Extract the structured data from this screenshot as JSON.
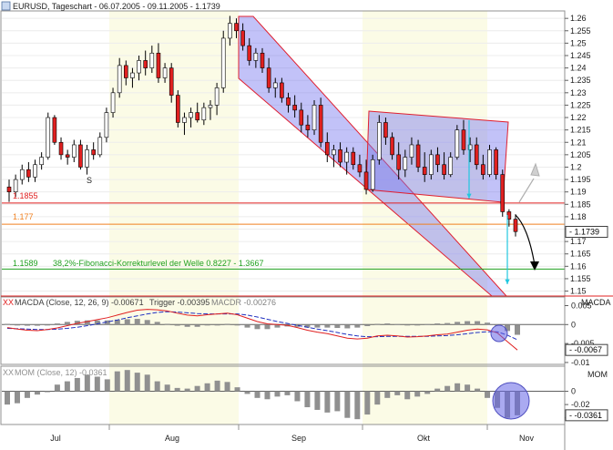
{
  "header": {
    "title": "EURUSD, Tageschart - 06.07.2005 - 09.11.2005 - 1.1739",
    "icon": "chart-window-icon"
  },
  "price_panel": {
    "y_ticks": [
      "1.26",
      "1.255",
      "1.25",
      "1.245",
      "1.24",
      "1.235",
      "1.23",
      "1.225",
      "1.22",
      "1.215",
      "1.21",
      "1.205",
      "1.2",
      "1.195",
      "1.19",
      "1.185",
      "1.18",
      "1.175",
      "1.17",
      "1.165",
      "1.16",
      "1.155",
      "1.15"
    ],
    "last_price": "1.1739",
    "levels": [
      {
        "label": "1.1855",
        "value": 1.1855,
        "color": "#e02020"
      },
      {
        "label": "1.177",
        "value": 1.177,
        "color": "#f08020"
      },
      {
        "label": "1.1589",
        "value": 1.1589,
        "color": "#20a020"
      }
    ],
    "fib_label": "38,2%-Fibonacci-Korrekturlevel der Welle 0.8227 - 1.3667",
    "s_label": "S"
  },
  "macd_panel": {
    "legend": {
      "main": "MACDA (Close, 12, 26, 9) -0.00671",
      "trigger": "Trigger -0.00395",
      "macdr": "MACDR -0.00276"
    },
    "title": "MACDA",
    "y_ticks": [
      "0.005",
      "0",
      "-0.005",
      "-0.01"
    ],
    "last_value": "-0.0067"
  },
  "mom_panel": {
    "legend": "MOM (Close, 12) -0.0361",
    "title": "MOM",
    "y_ticks": [
      "0",
      "-0.02",
      "-0.04"
    ],
    "last_value": "-0.0361"
  },
  "x_axis": {
    "labels": [
      "Jul",
      "Aug",
      "Sep",
      "Okt",
      "Nov"
    ]
  },
  "chart_data": {
    "type": "candlestick",
    "title": "EURUSD, Tageschart - 06.07.2005 - 09.11.2005 - 1.1739",
    "ylim": [
      1.148,
      1.263
    ],
    "x_labels": [
      "Jul",
      "Aug",
      "Sep",
      "Okt",
      "Nov"
    ],
    "candles": [
      {
        "o": 1.192,
        "h": 1.195,
        "l": 1.186,
        "c": 1.19
      },
      {
        "o": 1.19,
        "h": 1.197,
        "l": 1.188,
        "c": 1.195
      },
      {
        "o": 1.195,
        "h": 1.201,
        "l": 1.193,
        "c": 1.199
      },
      {
        "o": 1.199,
        "h": 1.202,
        "l": 1.194,
        "c": 1.196
      },
      {
        "o": 1.196,
        "h": 1.203,
        "l": 1.194,
        "c": 1.201
      },
      {
        "o": 1.201,
        "h": 1.206,
        "l": 1.199,
        "c": 1.204
      },
      {
        "o": 1.204,
        "h": 1.222,
        "l": 1.203,
        "c": 1.22
      },
      {
        "o": 1.22,
        "h": 1.221,
        "l": 1.209,
        "c": 1.21
      },
      {
        "o": 1.21,
        "h": 1.212,
        "l": 1.203,
        "c": 1.205
      },
      {
        "o": 1.205,
        "h": 1.207,
        "l": 1.201,
        "c": 1.204
      },
      {
        "o": 1.204,
        "h": 1.211,
        "l": 1.202,
        "c": 1.209
      },
      {
        "o": 1.209,
        "h": 1.211,
        "l": 1.199,
        "c": 1.2
      },
      {
        "o": 1.2,
        "h": 1.209,
        "l": 1.197,
        "c": 1.207
      },
      {
        "o": 1.207,
        "h": 1.21,
        "l": 1.203,
        "c": 1.205
      },
      {
        "o": 1.205,
        "h": 1.214,
        "l": 1.204,
        "c": 1.212
      },
      {
        "o": 1.212,
        "h": 1.224,
        "l": 1.21,
        "c": 1.222
      },
      {
        "o": 1.222,
        "h": 1.232,
        "l": 1.22,
        "c": 1.23
      },
      {
        "o": 1.23,
        "h": 1.244,
        "l": 1.228,
        "c": 1.241
      },
      {
        "o": 1.241,
        "h": 1.243,
        "l": 1.233,
        "c": 1.236
      },
      {
        "o": 1.236,
        "h": 1.24,
        "l": 1.232,
        "c": 1.238
      },
      {
        "o": 1.238,
        "h": 1.245,
        "l": 1.235,
        "c": 1.243
      },
      {
        "o": 1.243,
        "h": 1.247,
        "l": 1.237,
        "c": 1.24
      },
      {
        "o": 1.24,
        "h": 1.249,
        "l": 1.238,
        "c": 1.246
      },
      {
        "o": 1.246,
        "h": 1.25,
        "l": 1.234,
        "c": 1.236
      },
      {
        "o": 1.236,
        "h": 1.242,
        "l": 1.234,
        "c": 1.24
      },
      {
        "o": 1.24,
        "h": 1.242,
        "l": 1.226,
        "c": 1.229
      },
      {
        "o": 1.229,
        "h": 1.231,
        "l": 1.216,
        "c": 1.218
      },
      {
        "o": 1.218,
        "h": 1.222,
        "l": 1.213,
        "c": 1.22
      },
      {
        "o": 1.22,
        "h": 1.224,
        "l": 1.216,
        "c": 1.222
      },
      {
        "o": 1.222,
        "h": 1.226,
        "l": 1.218,
        "c": 1.219
      },
      {
        "o": 1.219,
        "h": 1.226,
        "l": 1.217,
        "c": 1.224
      },
      {
        "o": 1.224,
        "h": 1.227,
        "l": 1.219,
        "c": 1.225
      },
      {
        "o": 1.225,
        "h": 1.234,
        "l": 1.221,
        "c": 1.232
      },
      {
        "o": 1.232,
        "h": 1.255,
        "l": 1.23,
        "c": 1.252
      },
      {
        "o": 1.252,
        "h": 1.261,
        "l": 1.249,
        "c": 1.258
      },
      {
        "o": 1.258,
        "h": 1.26,
        "l": 1.252,
        "c": 1.255
      },
      {
        "o": 1.255,
        "h": 1.258,
        "l": 1.247,
        "c": 1.249
      },
      {
        "o": 1.249,
        "h": 1.252,
        "l": 1.241,
        "c": 1.243
      },
      {
        "o": 1.243,
        "h": 1.248,
        "l": 1.24,
        "c": 1.246
      },
      {
        "o": 1.246,
        "h": 1.248,
        "l": 1.238,
        "c": 1.24
      },
      {
        "o": 1.24,
        "h": 1.244,
        "l": 1.23,
        "c": 1.232
      },
      {
        "o": 1.232,
        "h": 1.236,
        "l": 1.228,
        "c": 1.234
      },
      {
        "o": 1.234,
        "h": 1.236,
        "l": 1.226,
        "c": 1.228
      },
      {
        "o": 1.228,
        "h": 1.23,
        "l": 1.222,
        "c": 1.225
      },
      {
        "o": 1.225,
        "h": 1.229,
        "l": 1.22,
        "c": 1.223
      },
      {
        "o": 1.223,
        "h": 1.226,
        "l": 1.214,
        "c": 1.217
      },
      {
        "o": 1.217,
        "h": 1.221,
        "l": 1.212,
        "c": 1.215
      },
      {
        "o": 1.215,
        "h": 1.227,
        "l": 1.213,
        "c": 1.225
      },
      {
        "o": 1.225,
        "h": 1.228,
        "l": 1.208,
        "c": 1.21
      },
      {
        "o": 1.21,
        "h": 1.214,
        "l": 1.202,
        "c": 1.205
      },
      {
        "o": 1.205,
        "h": 1.209,
        "l": 1.2,
        "c": 1.207
      },
      {
        "o": 1.207,
        "h": 1.21,
        "l": 1.2,
        "c": 1.202
      },
      {
        "o": 1.202,
        "h": 1.208,
        "l": 1.197,
        "c": 1.206
      },
      {
        "o": 1.206,
        "h": 1.208,
        "l": 1.199,
        "c": 1.201
      },
      {
        "o": 1.201,
        "h": 1.205,
        "l": 1.196,
        "c": 1.198
      },
      {
        "o": 1.198,
        "h": 1.203,
        "l": 1.189,
        "c": 1.191
      },
      {
        "o": 1.191,
        "h": 1.205,
        "l": 1.19,
        "c": 1.203
      },
      {
        "o": 1.203,
        "h": 1.221,
        "l": 1.201,
        "c": 1.218
      },
      {
        "o": 1.218,
        "h": 1.22,
        "l": 1.209,
        "c": 1.212
      },
      {
        "o": 1.212,
        "h": 1.214,
        "l": 1.203,
        "c": 1.205
      },
      {
        "o": 1.205,
        "h": 1.21,
        "l": 1.195,
        "c": 1.199
      },
      {
        "o": 1.199,
        "h": 1.207,
        "l": 1.196,
        "c": 1.204
      },
      {
        "o": 1.204,
        "h": 1.212,
        "l": 1.201,
        "c": 1.209
      },
      {
        "o": 1.209,
        "h": 1.211,
        "l": 1.198,
        "c": 1.2
      },
      {
        "o": 1.2,
        "h": 1.206,
        "l": 1.194,
        "c": 1.197
      },
      {
        "o": 1.197,
        "h": 1.207,
        "l": 1.195,
        "c": 1.205
      },
      {
        "o": 1.205,
        "h": 1.208,
        "l": 1.198,
        "c": 1.201
      },
      {
        "o": 1.201,
        "h": 1.206,
        "l": 1.195,
        "c": 1.197
      },
      {
        "o": 1.197,
        "h": 1.206,
        "l": 1.196,
        "c": 1.204
      },
      {
        "o": 1.204,
        "h": 1.217,
        "l": 1.203,
        "c": 1.215
      },
      {
        "o": 1.215,
        "h": 1.219,
        "l": 1.205,
        "c": 1.207
      },
      {
        "o": 1.207,
        "h": 1.212,
        "l": 1.202,
        "c": 1.209
      },
      {
        "o": 1.209,
        "h": 1.212,
        "l": 1.199,
        "c": 1.201
      },
      {
        "o": 1.201,
        "h": 1.205,
        "l": 1.195,
        "c": 1.197
      },
      {
        "o": 1.197,
        "h": 1.209,
        "l": 1.196,
        "c": 1.207
      },
      {
        "o": 1.207,
        "h": 1.208,
        "l": 1.195,
        "c": 1.197
      },
      {
        "o": 1.197,
        "h": 1.199,
        "l": 1.18,
        "c": 1.182
      },
      {
        "o": 1.182,
        "h": 1.183,
        "l": 1.176,
        "c": 1.179
      },
      {
        "o": 1.179,
        "h": 1.181,
        "l": 1.172,
        "c": 1.174
      }
    ],
    "macd_line": [
      -0.0008,
      -0.0012,
      -0.0015,
      -0.0016,
      -0.0013,
      -0.0009,
      -0.0003,
      0.0003,
      0.0008,
      0.0013,
      0.0018,
      0.0025,
      0.0032,
      0.0038,
      0.004,
      0.0039,
      0.0036,
      0.003,
      0.0025,
      0.0023,
      0.0026,
      0.0028,
      0.003,
      0.0026,
      0.0017,
      0.0008,
      0.0002,
      0.0,
      -0.0002,
      -0.0008,
      -0.0015,
      -0.002,
      -0.0024,
      -0.003,
      -0.0036,
      -0.0038,
      -0.0036,
      -0.003,
      -0.0028,
      -0.003,
      -0.0033,
      -0.0032,
      -0.003,
      -0.0027,
      -0.0025,
      -0.002,
      -0.0015,
      -0.0012,
      -0.0014,
      -0.0022,
      -0.0045,
      -0.0067
    ],
    "trigger_line": [
      -0.001,
      -0.0011,
      -0.0012,
      -0.0013,
      -0.0013,
      -0.0012,
      -0.001,
      -0.0007,
      -0.0003,
      0.0002,
      0.0007,
      0.0012,
      0.0018,
      0.0023,
      0.0028,
      0.0032,
      0.0034,
      0.0033,
      0.0031,
      0.0029,
      0.0028,
      0.0028,
      0.0028,
      0.0028,
      0.0025,
      0.002,
      0.0014,
      0.0008,
      0.0003,
      -0.0002,
      -0.0007,
      -0.0012,
      -0.0016,
      -0.0021,
      -0.0026,
      -0.003,
      -0.0032,
      -0.0032,
      -0.0031,
      -0.0031,
      -0.0031,
      -0.0031,
      -0.0031,
      -0.003,
      -0.0029,
      -0.0027,
      -0.0024,
      -0.0021,
      -0.0019,
      -0.0019,
      -0.0028,
      -0.004
    ],
    "macd_histogram": [
      0.0002,
      -0.0001,
      -0.0003,
      -0.0003,
      0.0,
      0.0003,
      0.0007,
      0.001,
      0.0011,
      0.0011,
      0.0011,
      0.0013,
      0.0014,
      0.0015,
      0.0012,
      0.0007,
      0.0002,
      -0.0003,
      -0.0006,
      -0.0006,
      -0.0002,
      0.0,
      0.0002,
      -0.0002,
      -0.0008,
      -0.0012,
      -0.0012,
      -0.0008,
      -0.0005,
      -0.0006,
      -0.0008,
      -0.0008,
      -0.0008,
      -0.0009,
      -0.001,
      -0.0008,
      -0.0004,
      0.0002,
      0.0003,
      0.0001,
      -0.0002,
      -0.0001,
      0.0001,
      0.0003,
      0.0004,
      0.0007,
      0.0009,
      0.0009,
      0.0005,
      -0.0003,
      -0.0017,
      -0.0027
    ],
    "momentum": [
      -0.02,
      -0.018,
      -0.01,
      -0.005,
      0.0,
      0.01,
      0.015,
      0.02,
      0.025,
      0.022,
      0.018,
      0.03,
      0.032,
      0.028,
      0.025,
      0.015,
      0.01,
      0.005,
      0.004,
      0.008,
      0.012,
      0.016,
      0.014,
      0.006,
      -0.004,
      -0.01,
      -0.012,
      -0.008,
      -0.006,
      -0.015,
      -0.024,
      -0.028,
      -0.032,
      -0.03,
      -0.04,
      -0.042,
      -0.035,
      -0.02,
      -0.01,
      -0.006,
      -0.012,
      -0.008,
      -0.004,
      0.004,
      0.008,
      0.012,
      0.01,
      0.004,
      -0.01,
      -0.025,
      -0.04,
      -0.0361
    ]
  }
}
